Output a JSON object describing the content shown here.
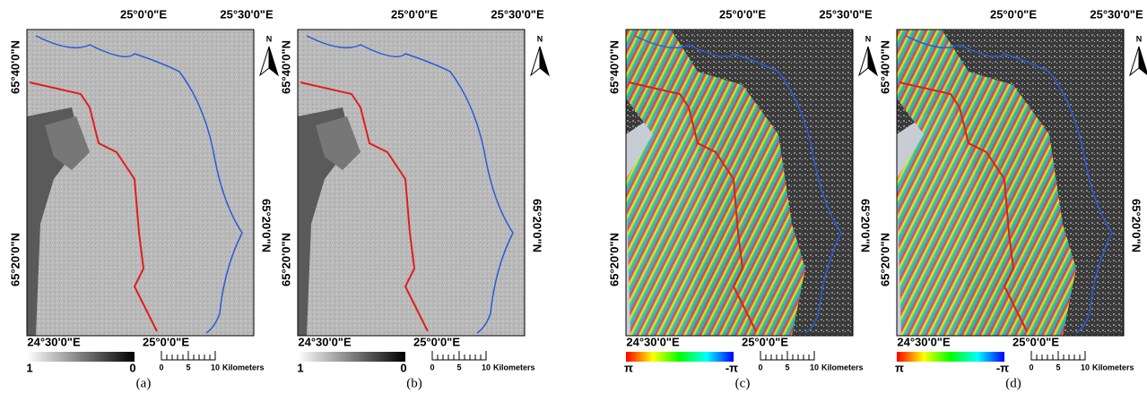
{
  "panels": [
    {
      "top_labels": [
        "25°0'0\"E",
        "25°30'0\"E"
      ],
      "left_labels": [
        "65°40'0\"N",
        "65°20'0\"N"
      ],
      "right_label": "65°20'0\"N",
      "bottom_labels": [
        "24°30'0\"E",
        "25°0'0\"E"
      ],
      "legend": [
        "1",
        "0"
      ],
      "scale": [
        "0",
        "5",
        "10",
        "Kilometers"
      ],
      "north": "N",
      "caption": "(a)"
    },
    {
      "top_labels": [
        "25°0'0\"E",
        "25°30'0\"E"
      ],
      "left_labels": [
        "65°40'0\"N",
        "65°20'0\"N"
      ],
      "right_label": "65°20'0\"N",
      "bottom_labels": [
        "24°30'0\"E",
        "25°0'0\"E"
      ],
      "legend": [
        "1",
        "0"
      ],
      "scale": [
        "0",
        "5",
        "10",
        "Kilometers"
      ],
      "north": "N",
      "caption": "(b)"
    },
    {
      "top_labels": [
        "25°0'0\"E",
        "25°30'0\"E"
      ],
      "left_labels": [
        "65°40'0\"N",
        "65°20'0\"N"
      ],
      "right_label": "65°20'0\"N",
      "bottom_labels": [
        "24°30'0\"E",
        "25°0'0\"E"
      ],
      "legend": [
        "π",
        "-π"
      ],
      "scale": [
        "0",
        "5",
        "10",
        "Kilometers"
      ],
      "north": "N",
      "caption": "(c)"
    },
    {
      "top_labels": [
        "25°0'0\"E",
        "25°30'0\"E"
      ],
      "left_labels": [
        "65°40'0\"N",
        "65°20'0\"N"
      ],
      "right_label": "65°20'0\"N",
      "bottom_labels": [
        "24°30'0\"E",
        "25°0'0\"E"
      ],
      "legend": [
        "π",
        "-π"
      ],
      "scale": [
        "0",
        "5",
        "10",
        "Kilometers"
      ],
      "north": "N",
      "caption": "(d)"
    }
  ]
}
